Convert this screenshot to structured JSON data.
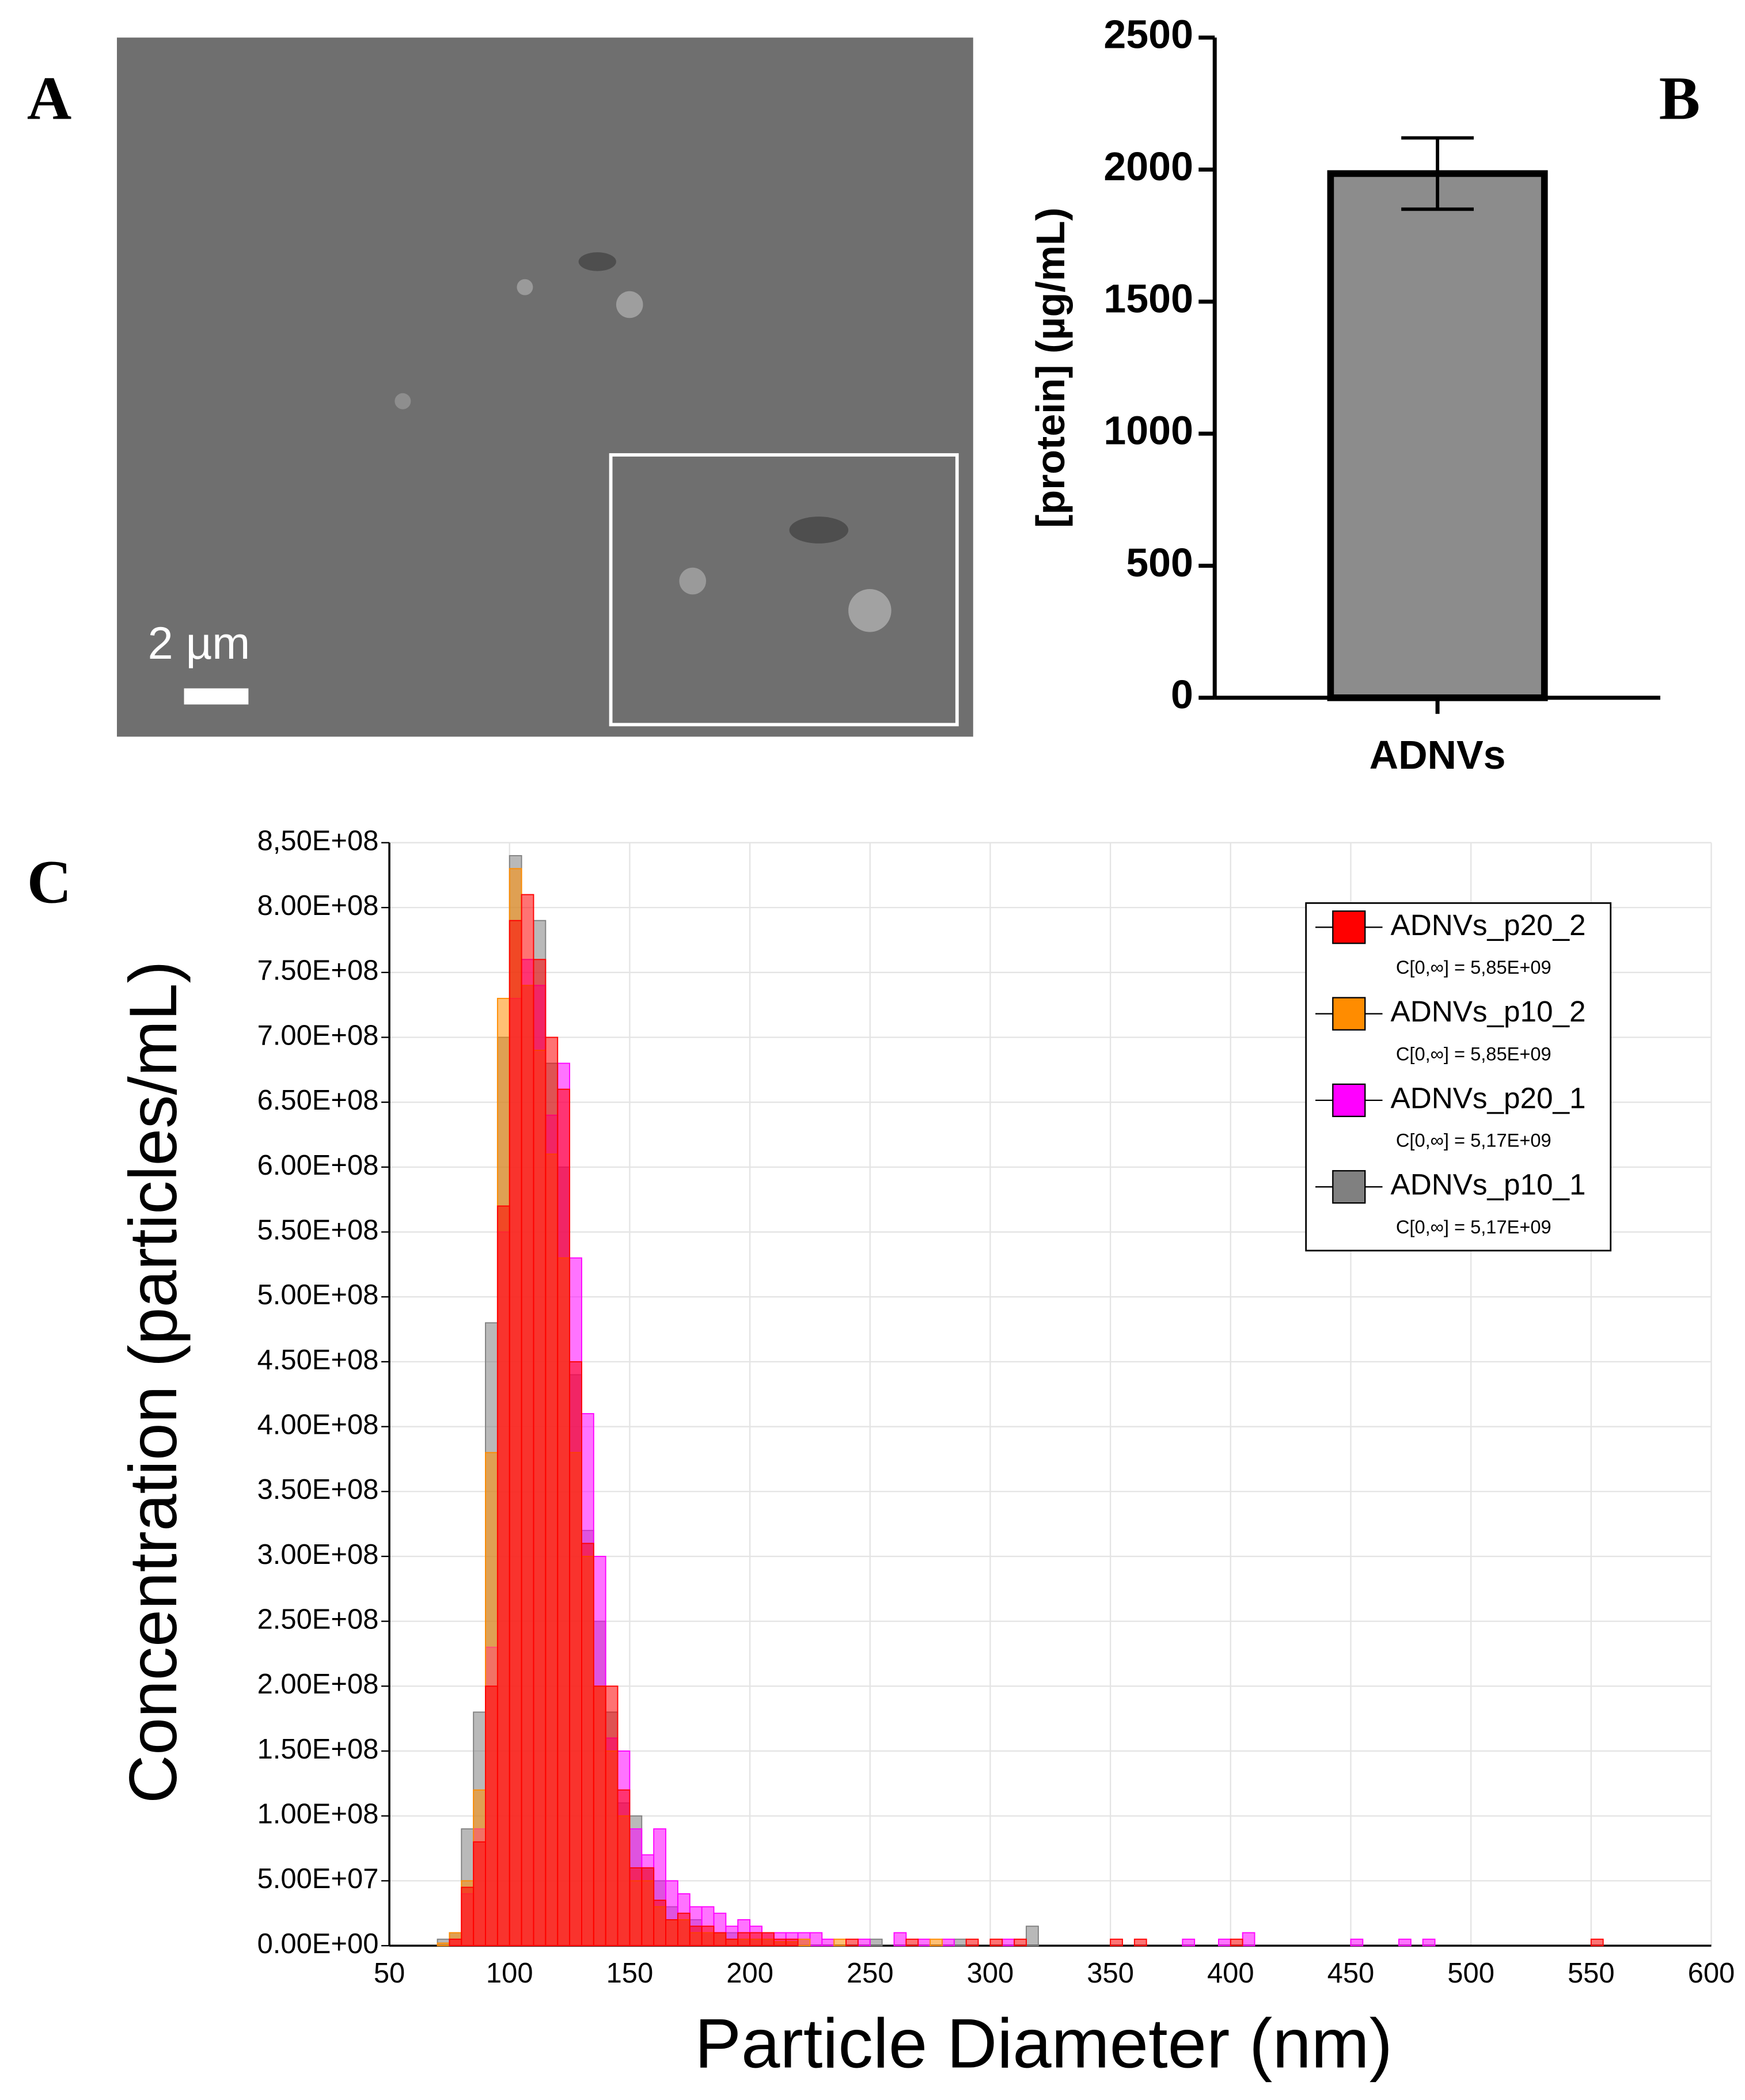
{
  "panel_labels": [
    "A",
    "B",
    "C"
  ],
  "micrograph": {
    "scale_label": "2 µm"
  },
  "chart_data": [
    {
      "type": "bar",
      "ylabel": "[protein] (µg/mL)",
      "categories": [
        "ADNVs"
      ],
      "values": [
        1985
      ],
      "errors": [
        135
      ],
      "color": "#8c8c8c",
      "ylim": [
        0,
        2500
      ],
      "yticks": [
        0,
        500,
        1000,
        1500,
        2000,
        2500
      ]
    },
    {
      "type": "histogram",
      "xlabel": "Particle Diameter (nm)",
      "ylabel": "Concentration (particles/mL)",
      "bins": [
        70,
        75,
        80,
        85,
        90,
        95,
        100,
        105,
        110,
        115,
        120,
        125,
        130,
        135,
        140,
        145,
        150,
        155,
        160,
        165,
        170,
        175,
        180,
        185,
        190,
        195,
        200,
        205,
        210,
        215,
        220,
        225,
        230,
        235,
        240,
        245,
        250,
        255,
        260,
        265,
        270,
        275,
        280,
        285,
        290,
        295,
        300,
        305,
        310,
        315,
        320,
        325,
        330,
        335,
        340,
        345,
        350,
        355,
        360,
        365,
        370,
        375,
        380,
        385,
        390,
        395,
        400,
        405,
        410,
        415,
        420,
        425,
        430,
        435,
        440,
        445,
        450,
        455,
        460,
        465,
        470,
        475,
        480,
        485,
        490,
        495,
        500,
        505,
        510,
        515,
        520,
        525,
        530,
        535,
        540,
        545,
        550,
        555
      ],
      "series": [
        {
          "name": "ADNVs_p20_2",
          "concentration": "C[0,∞] = 5,85E+09",
          "color": "#ff0000",
          "values": [
            0,
            5000000.0,
            45000000.0,
            80000000.0,
            200000000.0,
            570000000.0,
            790000000.0,
            810000000.0,
            760000000.0,
            700000000.0,
            660000000.0,
            450000000.0,
            310000000.0,
            200000000.0,
            200000000.0,
            120000000.0,
            60000000.0,
            60000000.0,
            35000000.0,
            20000000.0,
            25000000.0,
            15000000.0,
            15000000.0,
            10000000.0,
            5000000.0,
            10000000.0,
            10000000.0,
            10000000.0,
            5000000.0,
            5000000.0,
            0,
            0,
            0,
            0,
            5000000.0,
            0,
            0,
            0,
            0,
            5000000.0,
            0,
            0,
            0,
            0,
            5000000.0,
            0,
            5000000.0,
            0,
            5000000.0,
            0,
            0,
            0,
            0,
            0,
            0,
            0,
            5000000.0,
            0,
            5000000.0,
            0,
            0,
            0,
            0,
            0,
            0,
            0,
            5000000.0,
            0,
            0,
            0,
            0,
            0,
            0,
            0,
            0,
            0,
            0,
            0,
            0,
            0,
            0,
            0,
            0,
            0,
            0,
            0,
            0,
            0,
            0,
            0,
            0,
            0,
            0,
            0,
            0,
            0,
            5000000.0
          ]
        },
        {
          "name": "ADNVs_p10_2",
          "concentration": "C[0,∞] = 5,85E+09",
          "color": "#ff8c00",
          "values": [
            2000000.0,
            10000000.0,
            50000000.0,
            120000000.0,
            380000000.0,
            730000000.0,
            830000000.0,
            740000000.0,
            690000000.0,
            610000000.0,
            530000000.0,
            380000000.0,
            300000000.0,
            200000000.0,
            150000000.0,
            100000000.0,
            50000000.0,
            50000000.0,
            30000000.0,
            20000000.0,
            20000000.0,
            10000000.0,
            10000000.0,
            10000000.0,
            5000000.0,
            5000000.0,
            5000000.0,
            5000000.0,
            3000000.0,
            3000000.0,
            5000000.0,
            0,
            0,
            5000000.0,
            0,
            0,
            0,
            0,
            0,
            0,
            0,
            5000000.0,
            0,
            0,
            0,
            0,
            0,
            0,
            0,
            0,
            0,
            0,
            0,
            0,
            0,
            0,
            0,
            0,
            0,
            0,
            0,
            0,
            0,
            0,
            0,
            0,
            0,
            0,
            0,
            0,
            0,
            0,
            0,
            0,
            0,
            0,
            0,
            0,
            0,
            0,
            0,
            0,
            0,
            0,
            0,
            0,
            0,
            0,
            0,
            0,
            0,
            0,
            0,
            0,
            0,
            0,
            0
          ]
        },
        {
          "name": "ADNVs_p20_1",
          "concentration": "C[0,∞] = 5,17E+09",
          "color": "#ff00ff",
          "values": [
            0,
            5000000.0,
            40000000.0,
            90000000.0,
            230000000.0,
            550000000.0,
            730000000.0,
            760000000.0,
            740000000.0,
            640000000.0,
            680000000.0,
            530000000.0,
            410000000.0,
            300000000.0,
            160000000.0,
            150000000.0,
            90000000.0,
            70000000.0,
            90000000.0,
            50000000.0,
            40000000.0,
            30000000.0,
            30000000.0,
            25000000.0,
            15000000.0,
            20000000.0,
            15000000.0,
            10000000.0,
            10000000.0,
            10000000.0,
            10000000.0,
            10000000.0,
            5000000.0,
            0,
            0,
            5000000.0,
            0,
            0,
            10000000.0,
            0,
            5000000.0,
            0,
            5000000.0,
            0,
            0,
            0,
            0,
            5000000.0,
            0,
            0,
            0,
            0,
            0,
            0,
            0,
            0,
            0,
            0,
            0,
            0,
            0,
            0,
            5000000.0,
            0,
            0,
            5000000.0,
            0,
            10000000.0,
            0,
            0,
            0,
            0,
            0,
            0,
            0,
            0,
            5000000.0,
            0,
            0,
            0,
            5000000.0,
            0,
            5000000.0,
            0,
            0,
            0,
            0,
            0,
            0,
            0,
            0,
            0,
            0,
            0,
            0,
            0,
            0
          ]
        },
        {
          "name": "ADNVs_p10_1",
          "concentration": "C[0,∞] = 5,17E+09",
          "color": "#808080",
          "values": [
            5000000.0,
            10000000.0,
            90000000.0,
            180000000.0,
            480000000.0,
            700000000.0,
            840000000.0,
            740000000.0,
            790000000.0,
            680000000.0,
            600000000.0,
            440000000.0,
            320000000.0,
            250000000.0,
            180000000.0,
            110000000.0,
            100000000.0,
            60000000.0,
            50000000.0,
            30000000.0,
            20000000.0,
            20000000.0,
            10000000.0,
            10000000.0,
            10000000.0,
            5000000.0,
            5000000.0,
            5000000.0,
            3000000.0,
            3000000.0,
            5000000.0,
            0,
            0,
            0,
            0,
            0,
            5000000.0,
            0,
            0,
            0,
            0,
            0,
            0,
            5000000.0,
            0,
            0,
            0,
            0,
            0,
            15000000.0,
            0,
            0,
            0,
            0,
            0,
            0,
            0,
            0,
            0,
            0,
            0,
            0,
            0,
            0,
            0,
            0,
            0,
            0,
            0,
            0,
            0,
            0,
            0,
            0,
            0,
            0,
            0,
            0,
            0,
            0,
            0,
            0,
            0,
            0,
            0,
            0,
            0,
            0,
            0,
            0,
            0,
            0,
            0,
            0,
            0,
            0,
            0
          ]
        }
      ],
      "xlim": [
        50,
        600
      ],
      "xticks": [
        50,
        100,
        150,
        200,
        250,
        300,
        350,
        400,
        450,
        500,
        550,
        600
      ],
      "ylim": [
        0,
        850000000
      ],
      "yticks": [
        {
          "value": 0,
          "label": "0.00E+00"
        },
        {
          "value": 50000000,
          "label": "5.00E+07"
        },
        {
          "value": 100000000,
          "label": "1.00E+08"
        },
        {
          "value": 150000000,
          "label": "1.50E+08"
        },
        {
          "value": 200000000,
          "label": "2.00E+08"
        },
        {
          "value": 250000000,
          "label": "2.50E+08"
        },
        {
          "value": 300000000,
          "label": "3.00E+08"
        },
        {
          "value": 350000000,
          "label": "3.50E+08"
        },
        {
          "value": 400000000,
          "label": "4.00E+08"
        },
        {
          "value": 450000000,
          "label": "4.50E+08"
        },
        {
          "value": 500000000,
          "label": "5.00E+08"
        },
        {
          "value": 550000000,
          "label": "5.50E+08"
        },
        {
          "value": 600000000,
          "label": "6.00E+08"
        },
        {
          "value": 650000000,
          "label": "6.50E+08"
        },
        {
          "value": 700000000,
          "label": "7.00E+08"
        },
        {
          "value": 750000000,
          "label": "7.50E+08"
        },
        {
          "value": 800000000,
          "label": "8.00E+08"
        },
        {
          "value": 850000000,
          "label": "8,50E+08"
        }
      ],
      "grid": true,
      "legend": "upper right"
    }
  ]
}
